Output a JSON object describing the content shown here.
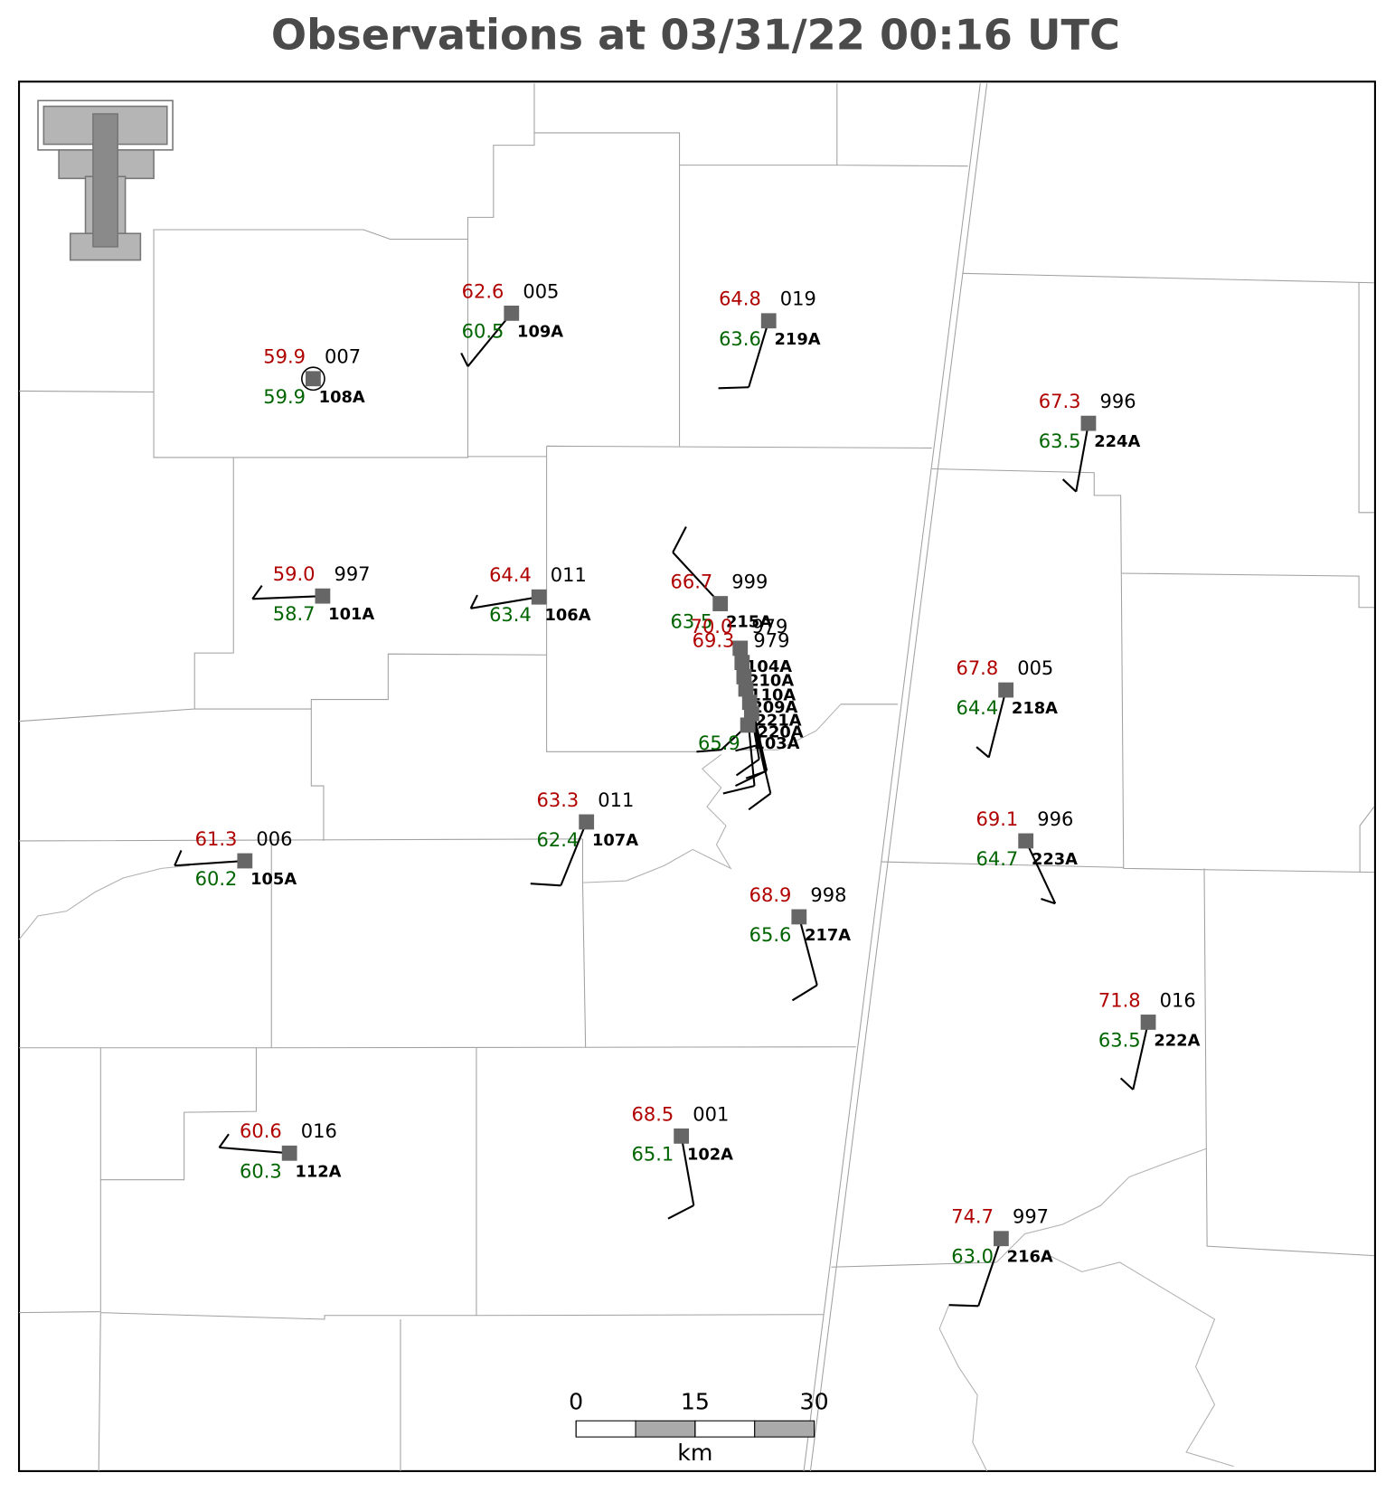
{
  "title": "Observations at 03/31/22 00:16 UTC",
  "stations": [
    {
      "id": "108A",
      "temperature": "59.9",
      "dewpoint": "59.9",
      "pressure": "007"
    },
    {
      "id": "109A",
      "temperature": "62.6",
      "dewpoint": "60.5",
      "pressure": "005"
    },
    {
      "id": "219A",
      "temperature": "64.8",
      "dewpoint": "63.6",
      "pressure": "019"
    },
    {
      "id": "224A",
      "temperature": "67.3",
      "dewpoint": "63.5",
      "pressure": "996"
    },
    {
      "id": "101A",
      "temperature": "59.0",
      "dewpoint": "58.7",
      "pressure": "997"
    },
    {
      "id": "106A",
      "temperature": "64.4",
      "dewpoint": "63.4",
      "pressure": "011"
    },
    {
      "id": "215A",
      "temperature": "66.7",
      "dewpoint": "63.5",
      "pressure": "999"
    },
    {
      "id": "218A",
      "temperature": "67.8",
      "dewpoint": "64.4",
      "pressure": "005"
    },
    {
      "id": "107A",
      "temperature": "63.3",
      "dewpoint": "62.4",
      "pressure": "011"
    },
    {
      "id": "105A",
      "temperature": "61.3",
      "dewpoint": "60.2",
      "pressure": "006"
    },
    {
      "id": "223A",
      "temperature": "69.1",
      "dewpoint": "64.7",
      "pressure": "996"
    },
    {
      "id": "217A",
      "temperature": "68.9",
      "dewpoint": "65.6",
      "pressure": "998"
    },
    {
      "id": "222A",
      "temperature": "71.8",
      "dewpoint": "63.5",
      "pressure": "016"
    },
    {
      "id": "112A",
      "temperature": "60.6",
      "dewpoint": "60.3",
      "pressure": "016"
    },
    {
      "id": "102A",
      "temperature": "68.5",
      "dewpoint": "65.1",
      "pressure": "001"
    },
    {
      "id": "216A",
      "temperature": "74.7",
      "dewpoint": "63.0",
      "pressure": "997"
    }
  ],
  "cluster_stations": [
    {
      "id": "104A",
      "temperature": "70.0",
      "pressure": "979"
    },
    {
      "id": "210A",
      "temperature": "69.3",
      "pressure": "979"
    },
    {
      "id": "110A"
    },
    {
      "id": "209A"
    },
    {
      "id": "221A"
    },
    {
      "id": "220A"
    },
    {
      "id": "103A",
      "dewpoint": "65.9"
    }
  ],
  "scale_bar": {
    "ticks": [
      0,
      15,
      30
    ],
    "unit": "km"
  }
}
